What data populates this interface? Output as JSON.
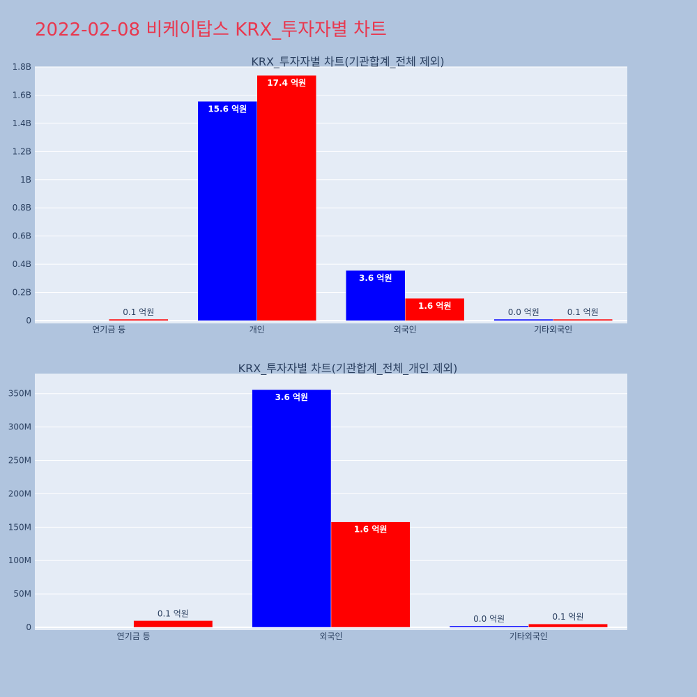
{
  "page": {
    "title": "2022-02-08 비케이탑스 KRX_투자자별 차트",
    "background": "#b0c4de",
    "title_color": "#e8384f"
  },
  "chart_data": [
    {
      "type": "bar",
      "title": "KRX_투자자별 차트(기관합계_전체 제외)",
      "categories": [
        "연기금 등",
        "개인",
        "외국인",
        "기타외국인"
      ],
      "series": [
        {
          "color": "#0000ff",
          "values": [
            0,
            1556000000,
            356000000,
            2000000
          ],
          "labels": [
            "",
            "15.6 억원",
            "3.6 억원",
            "0.0 억원"
          ]
        },
        {
          "color": "#ff0000",
          "values": [
            10000000,
            1740000000,
            158000000,
            5000000
          ],
          "labels": [
            "0.1 억원",
            "17.4 억원",
            "1.6 억원",
            "0.1 억원"
          ]
        }
      ],
      "ylim": [
        0,
        1800000000.0
      ],
      "yticks": [
        0,
        200000000.0,
        400000000.0,
        600000000.0,
        800000000.0,
        1000000000.0,
        1200000000.0,
        1400000000.0,
        1600000000.0,
        1800000000.0
      ],
      "ytick_labels": [
        "0",
        "0.2B",
        "0.4B",
        "0.6B",
        "0.8B",
        "1B",
        "1.2B",
        "1.4B",
        "1.6B",
        "1.8B"
      ],
      "grid": true,
      "plot_background": "#e5ecf6"
    },
    {
      "type": "bar",
      "title": "KRX_투자자별 차트(기관합계_전체_개인 제외)",
      "categories": [
        "연기금 등",
        "외국인",
        "기타외국인"
      ],
      "series": [
        {
          "color": "#0000ff",
          "values": [
            0,
            356000000,
            2000000
          ],
          "labels": [
            "",
            "3.6 억원",
            "0.0 억원"
          ]
        },
        {
          "color": "#ff0000",
          "values": [
            10000000,
            158000000,
            5000000
          ],
          "labels": [
            "0.1 억원",
            "1.6 억원",
            "0.1 억원"
          ]
        }
      ],
      "ylim": [
        0,
        380000000.0
      ],
      "yticks": [
        0,
        50000000.0,
        100000000.0,
        150000000.0,
        200000000.0,
        250000000.0,
        300000000.0,
        350000000.0
      ],
      "ytick_labels": [
        "0",
        "50M",
        "100M",
        "150M",
        "200M",
        "250M",
        "300M",
        "350M"
      ],
      "grid": true,
      "plot_background": "#e5ecf6"
    }
  ]
}
